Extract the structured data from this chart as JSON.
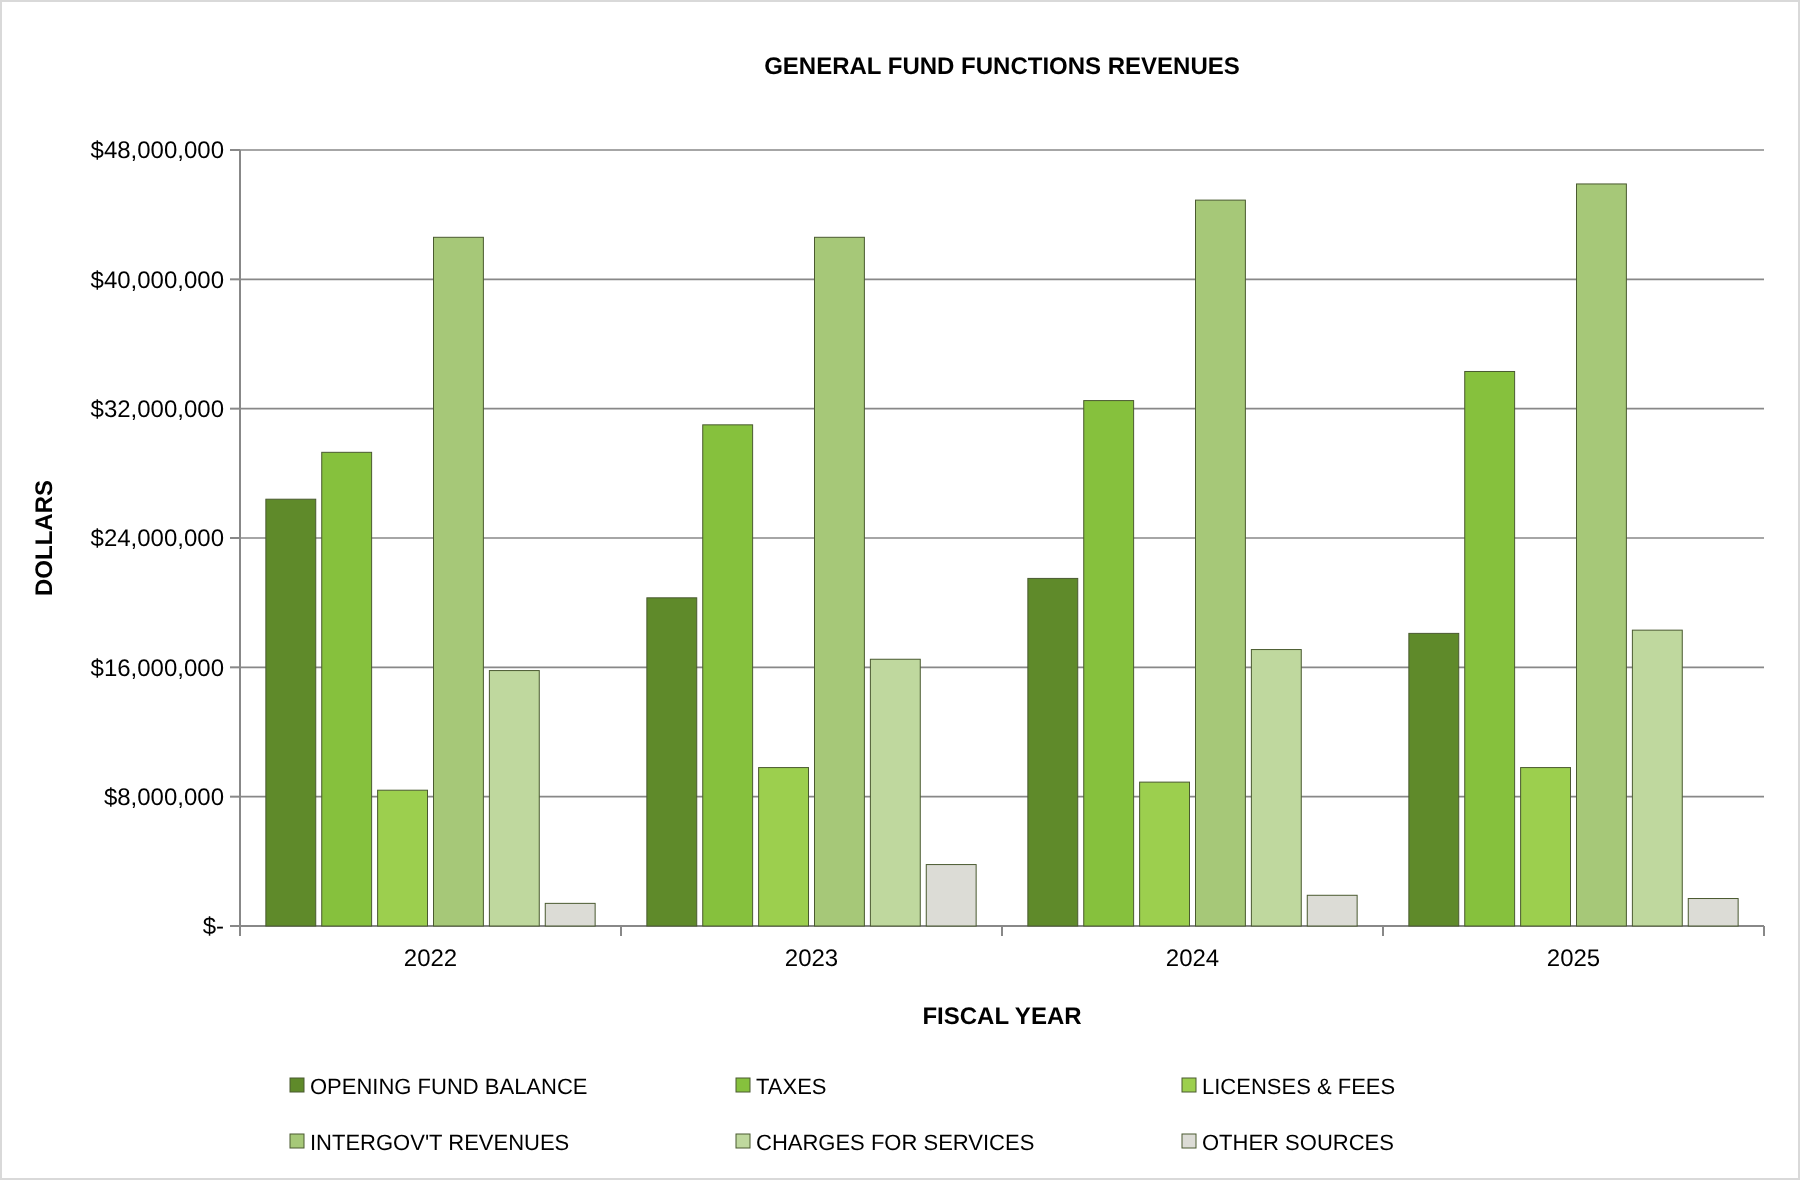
{
  "chart_data": {
    "type": "bar",
    "title": "GENERAL FUND FUNCTIONS REVENUES",
    "xlabel": "FISCAL YEAR",
    "ylabel": "DOLLARS",
    "categories": [
      "2022",
      "2023",
      "2024",
      "2025"
    ],
    "series": [
      {
        "name": "OPENING FUND BALANCE",
        "color": "#5f8a2a",
        "values": [
          26400000,
          20300000,
          21500000,
          18100000
        ]
      },
      {
        "name": "TAXES",
        "color": "#86c13d",
        "values": [
          29300000,
          31000000,
          32500000,
          34300000
        ]
      },
      {
        "name": "LICENSES & FEES",
        "color": "#9ccf4e",
        "values": [
          8400000,
          9800000,
          8900000,
          9800000
        ]
      },
      {
        "name": "INTERGOV'T REVENUES",
        "color": "#a6c878",
        "values": [
          42600000,
          42600000,
          44900000,
          45900000
        ]
      },
      {
        "name": "CHARGES FOR SERVICES",
        "color": "#bfd89e",
        "values": [
          15800000,
          16500000,
          17100000,
          18300000
        ]
      },
      {
        "name": "OTHER SOURCES",
        "color": "#dcdcd6",
        "values": [
          1400000,
          3800000,
          1900000,
          1700000
        ]
      }
    ],
    "ylim": [
      0,
      48000000
    ],
    "yticks": [
      {
        "value": 0,
        "label": "$-"
      },
      {
        "value": 8000000,
        "label": "$8,000,000"
      },
      {
        "value": 16000000,
        "label": "$16,000,000"
      },
      {
        "value": 24000000,
        "label": "$24,000,000"
      },
      {
        "value": 32000000,
        "label": "$32,000,000"
      },
      {
        "value": 40000000,
        "label": "$40,000,000"
      },
      {
        "value": 48000000,
        "label": "$48,000,000"
      }
    ],
    "grid": "y",
    "legend": "bottom"
  }
}
